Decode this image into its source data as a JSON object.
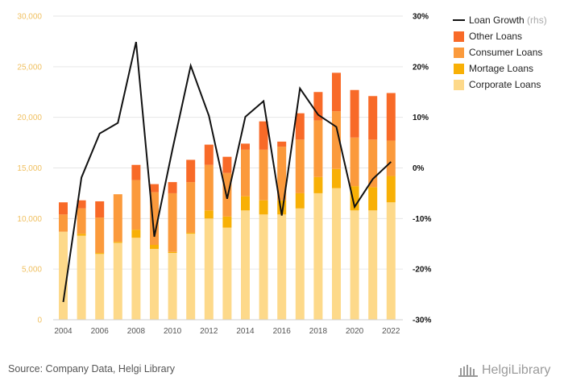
{
  "chart_data": {
    "type": "bar",
    "stacked": true,
    "x": [
      2004,
      2005,
      2006,
      2007,
      2008,
      2009,
      2010,
      2011,
      2012,
      2013,
      2014,
      2015,
      2016,
      2017,
      2018,
      2019,
      2020,
      2021,
      2022
    ],
    "x_tick_labels": [
      "2004",
      "2006",
      "2008",
      "2010",
      "2012",
      "2014",
      "2016",
      "2018",
      "2020",
      "2022"
    ],
    "y_left": {
      "ylim": [
        0,
        30000
      ],
      "ticks": [
        "0",
        "5,000",
        "10,000",
        "15,000",
        "20,000",
        "25,000",
        "30,000"
      ]
    },
    "y_right": {
      "ylim": [
        -30,
        30
      ],
      "ticks": [
        "-30%",
        "-20%",
        "-10%",
        "0%",
        "10%",
        "20%",
        "30%"
      ]
    },
    "series": [
      {
        "name": "Corporate Loans",
        "color": "#fdd98a",
        "values": [
          8700,
          8300,
          6500,
          7600,
          8100,
          7000,
          6600,
          8500,
          10000,
          9100,
          10800,
          10400,
          10400,
          11000,
          12500,
          13000,
          10800,
          10800,
          11600
        ]
      },
      {
        "name": "Mortage Loans",
        "color": "#f8b006",
        "values": [
          0,
          200,
          100,
          100,
          800,
          400,
          100,
          100,
          800,
          1100,
          1400,
          1400,
          1400,
          1500,
          1600,
          1900,
          2400,
          2300,
          2600
        ]
      },
      {
        "name": "Consumer Loans",
        "color": "#fb9a3c",
        "values": [
          1700,
          2500,
          3500,
          4700,
          4900,
          5200,
          5800,
          5000,
          4500,
          4300,
          4600,
          5000,
          5300,
          5300,
          5600,
          5700,
          4800,
          4700,
          3500
        ]
      },
      {
        "name": "Other Loans",
        "color": "#f86a28",
        "values": [
          1200,
          800,
          1600,
          0,
          1500,
          800,
          1100,
          2200,
          2000,
          1600,
          600,
          2800,
          500,
          2600,
          2800,
          3800,
          4700,
          4300,
          4700
        ]
      },
      {
        "name": "Loan Growth",
        "sub": "(rhs)",
        "type": "line",
        "axis": "right",
        "color": "#111111",
        "values": [
          -26.5,
          -1.9,
          6.8,
          8.9,
          24.9,
          -13.6,
          3.7,
          20.2,
          10.3,
          -6.1,
          10.1,
          13.2,
          -9.4,
          15.7,
          10.5,
          8.1,
          -7.7,
          -2.2,
          1.2
        ]
      }
    ],
    "legend_position": "top-right",
    "grid": true
  },
  "source": "Source: Company Data, Helgi Library",
  "brand": "HelgiLibrary"
}
